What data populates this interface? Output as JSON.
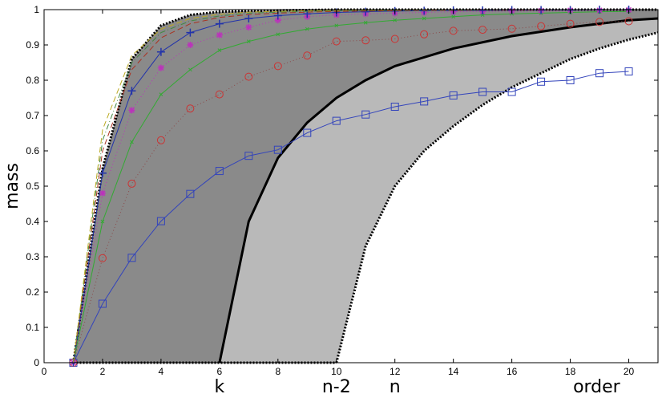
{
  "chart_data": {
    "type": "line",
    "xlabel": "order",
    "ylabel": "mass",
    "xlim": [
      0,
      21
    ],
    "ylim": [
      0,
      1
    ],
    "x_ticks": [
      0,
      2,
      4,
      6,
      8,
      10,
      12,
      14,
      16,
      18,
      20
    ],
    "y_ticks": [
      0,
      0.1,
      0.2,
      0.3,
      0.4,
      0.5,
      0.6,
      0.7,
      0.8,
      0.9,
      1
    ],
    "grid": false,
    "x_markers": [
      {
        "label": "k",
        "x": 6
      },
      {
        "label": "n-2",
        "x": 10
      },
      {
        "label": "n",
        "x": 12
      },
      {
        "label": "order",
        "x": 18.9
      }
    ],
    "regions": {
      "upper_bound": [
        [
          1,
          0
        ],
        [
          2,
          0.55
        ],
        [
          3,
          0.86
        ],
        [
          4,
          0.955
        ],
        [
          5,
          0.985
        ],
        [
          6,
          0.994
        ],
        [
          8,
          0.998
        ],
        [
          10,
          1
        ],
        [
          21,
          1
        ]
      ],
      "dark_region_right_edge": [
        [
          6,
          0
        ],
        [
          7,
          0.4
        ],
        [
          8,
          0.58
        ],
        [
          9,
          0.68
        ],
        [
          10,
          0.75
        ],
        [
          11,
          0.8
        ],
        [
          12,
          0.84
        ],
        [
          14,
          0.89
        ],
        [
          16,
          0.925
        ],
        [
          18,
          0.95
        ],
        [
          20,
          0.97
        ],
        [
          21,
          0.975
        ]
      ],
      "light_region_right_edge": [
        [
          10,
          0
        ],
        [
          11,
          0.33
        ],
        [
          12,
          0.5
        ],
        [
          13,
          0.6
        ],
        [
          14,
          0.67
        ],
        [
          15,
          0.73
        ],
        [
          16,
          0.78
        ],
        [
          17,
          0.82
        ],
        [
          18,
          0.86
        ],
        [
          19,
          0.89
        ],
        [
          20,
          0.915
        ],
        [
          21,
          0.935
        ]
      ]
    },
    "colors": {
      "dark_region": "#8a8a8a",
      "light_region": "#b9b9b9",
      "boundary": "#000000"
    },
    "series": [
      {
        "marker": "square",
        "style": "solid",
        "color": "#3344bb",
        "x": [
          1,
          2,
          3,
          4,
          5,
          6,
          7,
          8,
          9,
          10,
          11,
          12,
          13,
          14,
          15,
          16,
          17,
          18,
          19,
          20
        ],
        "y": [
          0,
          0.167,
          0.297,
          0.401,
          0.478,
          0.543,
          0.586,
          0.603,
          0.651,
          0.685,
          0.703,
          0.725,
          0.74,
          0.757,
          0.767,
          0.767,
          0.796,
          0.8,
          0.82,
          0.825
        ]
      },
      {
        "marker": "circle",
        "style": "dotted",
        "color": "#cc3333",
        "line_color": "#8a4a4a",
        "x": [
          1,
          2,
          3,
          4,
          5,
          6,
          7,
          8,
          9,
          10,
          11,
          12,
          13,
          14,
          15,
          16,
          17,
          18,
          19,
          20
        ],
        "y": [
          0,
          0.296,
          0.507,
          0.63,
          0.72,
          0.76,
          0.81,
          0.84,
          0.87,
          0.91,
          0.913,
          0.917,
          0.93,
          0.94,
          0.943,
          0.946,
          0.953,
          0.96,
          0.965,
          0.967
        ]
      },
      {
        "marker": "x",
        "style": "solid",
        "color": "#33aa33",
        "x": [
          1,
          2,
          3,
          4,
          5,
          6,
          7,
          8,
          9,
          10,
          11,
          12,
          13,
          14,
          15,
          16,
          17,
          18,
          19,
          20
        ],
        "y": [
          0,
          0.4,
          0.625,
          0.76,
          0.83,
          0.885,
          0.91,
          0.93,
          0.945,
          0.955,
          0.963,
          0.97,
          0.975,
          0.98,
          0.985,
          0.988,
          0.99,
          0.992,
          0.994,
          0.995
        ]
      },
      {
        "marker": "star",
        "style": "dotted",
        "color": "#bb33bb",
        "x": [
          1,
          2,
          3,
          4,
          5,
          6,
          7,
          8,
          9,
          10,
          11,
          12,
          13,
          14,
          15,
          16,
          17,
          18,
          19,
          20
        ],
        "y": [
          0,
          0.48,
          0.715,
          0.835,
          0.9,
          0.928,
          0.95,
          0.97,
          0.98,
          0.985,
          0.988,
          0.99,
          0.992,
          0.994,
          0.995,
          0.996,
          0.997,
          0.998,
          0.998,
          0.999
        ]
      },
      {
        "marker": "plus",
        "style": "solid",
        "color": "#2233aa",
        "x": [
          1,
          2,
          3,
          4,
          5,
          6,
          7,
          8,
          9,
          10,
          11,
          12,
          13,
          14,
          15,
          16,
          17,
          18,
          19,
          20
        ],
        "y": [
          0,
          0.537,
          0.77,
          0.88,
          0.935,
          0.96,
          0.975,
          0.983,
          0.988,
          0.992,
          0.994,
          0.996,
          0.997,
          0.998,
          0.998,
          0.999,
          0.999,
          0.999,
          1,
          1
        ]
      },
      {
        "marker": "none",
        "style": "dashed",
        "color": "#aa3322",
        "x": [
          1,
          2,
          3,
          4,
          5,
          6,
          7,
          8,
          9,
          10,
          11,
          12,
          13,
          14,
          15,
          16,
          17,
          18,
          19,
          20
        ],
        "y": [
          0,
          0.6,
          0.83,
          0.92,
          0.96,
          0.978,
          0.986,
          0.99,
          0.993,
          0.995,
          0.996,
          0.997,
          0.998,
          0.998,
          0.999,
          0.999,
          0.999,
          1,
          1,
          1
        ]
      },
      {
        "marker": "none",
        "style": "dashdot",
        "color": "#448844",
        "x": [
          1,
          2,
          3,
          4,
          5,
          6,
          7,
          8,
          9,
          10,
          11,
          12,
          13,
          14,
          15,
          16,
          17,
          18,
          19,
          20
        ],
        "y": [
          0,
          0.63,
          0.85,
          0.935,
          0.968,
          0.982,
          0.99,
          0.993,
          0.995,
          0.997,
          0.998,
          0.998,
          0.999,
          0.999,
          0.999,
          1,
          1,
          1,
          1,
          1
        ]
      },
      {
        "marker": "none",
        "style": "dashed",
        "color": "#bbaa22",
        "x": [
          1,
          2,
          3,
          4,
          5,
          6,
          7,
          8,
          9,
          10,
          11,
          12,
          13,
          14,
          15,
          16,
          17,
          18,
          19,
          20
        ],
        "y": [
          0,
          0.66,
          0.87,
          0.945,
          0.975,
          0.987,
          0.993,
          0.995,
          0.997,
          0.998,
          0.999,
          0.999,
          0.999,
          1,
          1,
          1,
          1,
          1,
          1,
          1
        ]
      }
    ]
  }
}
